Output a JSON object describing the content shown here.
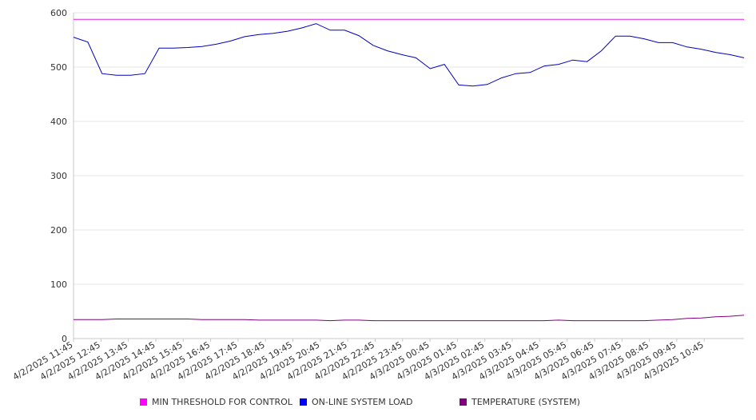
{
  "chart_data": {
    "type": "line",
    "title": "",
    "xlabel": "",
    "ylabel": "",
    "ylim": [
      0,
      600
    ],
    "y_ticks": [
      0,
      100,
      200,
      300,
      400,
      500,
      600
    ],
    "grid": true,
    "legend_position": "bottom",
    "x_tick_labels": [
      "4/2/2025 11:45",
      "4/2/2025 12:45",
      "4/2/2025 13:45",
      "4/2/2025 14:45",
      "4/2/2025 15:45",
      "4/2/2025 16:45",
      "4/2/2025 17:45",
      "4/2/2025 18:45",
      "4/2/2025 19:45",
      "4/2/2025 20:45",
      "4/2/2025 21:45",
      "4/2/2025 22:45",
      "4/2/2025 23:45",
      "4/3/2025 00:45",
      "4/3/2025 01:45",
      "4/3/2025 02:45",
      "4/3/2025 03:45",
      "4/3/2025 04:45",
      "4/3/2025 05:45",
      "4/3/2025 06:45",
      "4/3/2025 07:45",
      "4/3/2025 08:45",
      "4/3/2025 09:45",
      "4/3/2025 10:45"
    ],
    "x": [
      "4/2/2025 11:45",
      "4/2/2025 12:15",
      "4/2/2025 12:45",
      "4/2/2025 13:15",
      "4/2/2025 13:45",
      "4/2/2025 14:15",
      "4/2/2025 14:45",
      "4/2/2025 15:15",
      "4/2/2025 15:45",
      "4/2/2025 16:15",
      "4/2/2025 16:45",
      "4/2/2025 17:15",
      "4/2/2025 17:45",
      "4/2/2025 18:15",
      "4/2/2025 18:45",
      "4/2/2025 19:15",
      "4/2/2025 19:45",
      "4/2/2025 20:15",
      "4/2/2025 20:45",
      "4/2/2025 21:15",
      "4/2/2025 21:45",
      "4/2/2025 22:15",
      "4/2/2025 22:45",
      "4/2/2025 23:15",
      "4/2/2025 23:45",
      "4/3/2025 00:15",
      "4/3/2025 00:45",
      "4/3/2025 01:15",
      "4/3/2025 01:45",
      "4/3/2025 02:15",
      "4/3/2025 02:45",
      "4/3/2025 03:15",
      "4/3/2025 03:45",
      "4/3/2025 04:15",
      "4/3/2025 04:45",
      "4/3/2025 05:15",
      "4/3/2025 05:45",
      "4/3/2025 06:15",
      "4/3/2025 06:45",
      "4/3/2025 07:15",
      "4/3/2025 07:45",
      "4/3/2025 08:15",
      "4/3/2025 08:45",
      "4/3/2025 09:15",
      "4/3/2025 09:45",
      "4/3/2025 10:15",
      "4/3/2025 10:45",
      "4/3/2025 11:15"
    ],
    "series": [
      {
        "name": "MIN THRESHOLD FOR CONTROL",
        "color": "#e020e0",
        "swatch": "#ff00ff",
        "values": [
          588,
          588,
          588,
          588,
          588,
          588,
          588,
          588,
          588,
          588,
          588,
          588,
          588,
          588,
          588,
          588,
          588,
          588,
          588,
          588,
          588,
          588,
          588,
          588,
          588,
          588,
          588,
          588,
          588,
          588,
          588,
          588,
          588,
          588,
          588,
          588,
          588,
          588,
          588,
          588,
          588,
          588,
          588,
          588,
          588,
          588,
          588,
          588
        ]
      },
      {
        "name": "ON-LINE SYSTEM LOAD",
        "color": "#0000c0",
        "swatch": "#0000ff",
        "values": [
          555,
          546,
          488,
          485,
          485,
          488,
          535,
          535,
          536,
          538,
          542,
          548,
          556,
          560,
          562,
          566,
          572,
          580,
          568,
          568,
          558,
          540,
          530,
          523,
          517,
          497,
          505,
          467,
          465,
          468,
          480,
          488,
          490,
          502,
          505,
          513,
          510,
          530,
          557,
          557,
          552,
          545,
          545,
          537,
          533,
          527,
          523,
          517
        ]
      },
      {
        "name": "TEMPERATURE (SYSTEM)",
        "color": "#800080",
        "swatch": "#800080",
        "values": [
          35,
          35,
          35,
          36,
          36,
          36,
          36,
          36,
          36,
          35,
          35,
          35,
          35,
          34,
          34,
          34,
          34,
          34,
          33,
          34,
          34,
          33,
          33,
          33,
          33,
          33,
          33,
          33,
          33,
          33,
          33,
          33,
          33,
          33,
          34,
          33,
          33,
          33,
          33,
          33,
          33,
          34,
          35,
          37,
          38,
          40,
          41,
          43
        ]
      }
    ]
  }
}
